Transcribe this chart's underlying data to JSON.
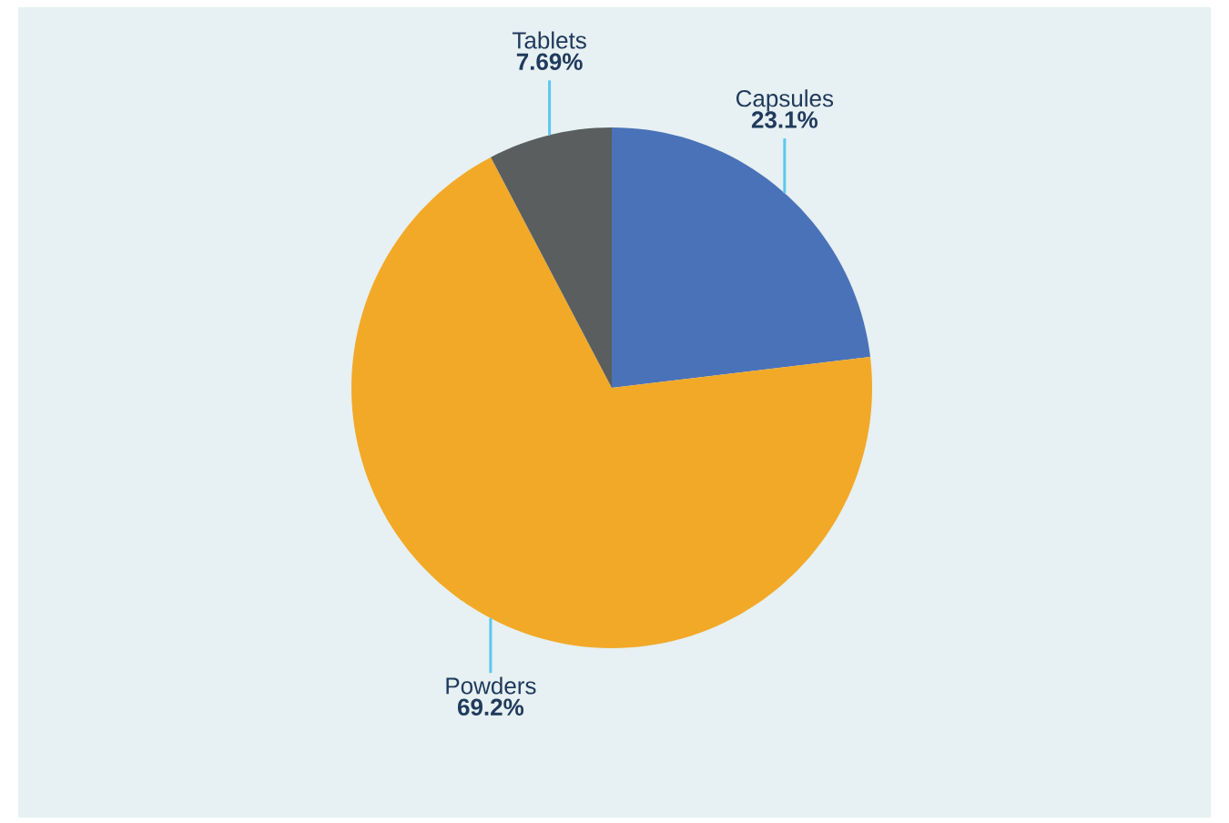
{
  "chart_data": {
    "type": "pie",
    "categories": [
      "Capsules",
      "Powders",
      "Tablets"
    ],
    "values": [
      23.1,
      69.2,
      7.69
    ],
    "colors": [
      "#4a72b8",
      "#f2a928",
      "#5a5e5e"
    ],
    "value_labels": [
      "23.1%",
      "69.2%",
      "7.69%"
    ]
  }
}
